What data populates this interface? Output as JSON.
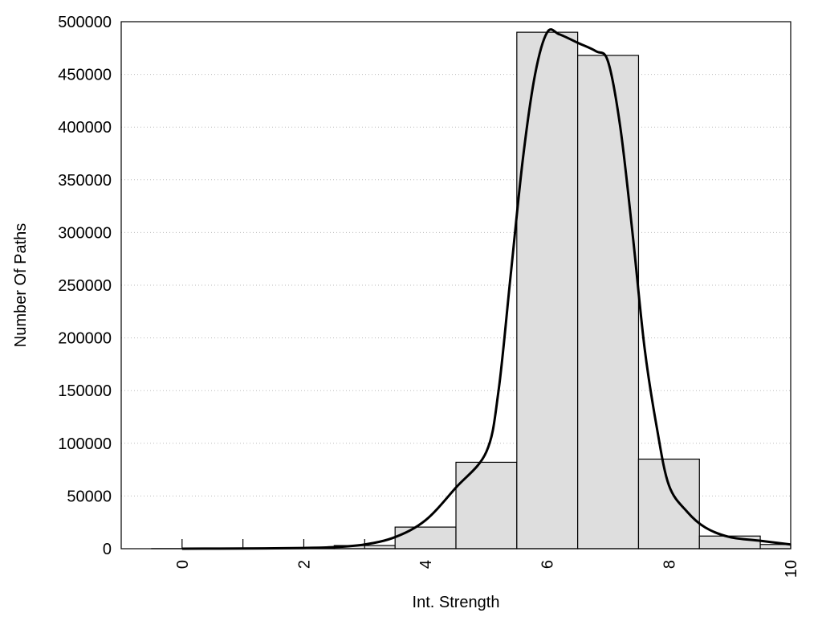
{
  "chart_data": {
    "type": "bar",
    "title": "",
    "xlabel": "Int. Strength",
    "ylabel": "Number Of Paths",
    "xlim": [
      -1,
      10
    ],
    "ylim": [
      0,
      500000
    ],
    "grid": true,
    "x_ticks": [
      0,
      2,
      4,
      6,
      8,
      10
    ],
    "x_minor_ticks": [
      0,
      1,
      2,
      3
    ],
    "y_ticks": [
      0,
      50000,
      100000,
      150000,
      200000,
      250000,
      300000,
      350000,
      400000,
      450000,
      500000
    ],
    "bar_color": "#dedede",
    "bars": {
      "x": [
        0,
        1,
        2,
        3,
        4,
        5,
        6,
        7,
        8,
        9,
        10
      ],
      "values": [
        100,
        300,
        800,
        3000,
        20500,
        82000,
        490000,
        468000,
        85000,
        12000,
        4000
      ]
    },
    "fit_curve": {
      "x": [
        0,
        1,
        2,
        2.5,
        3,
        3.5,
        4,
        4.5,
        5,
        5.2,
        5.4,
        5.6,
        5.8,
        6,
        6.2,
        6.5,
        6.8,
        7,
        7.2,
        7.4,
        7.6,
        7.8,
        8,
        8.3,
        8.6,
        9,
        9.5,
        10
      ],
      "y": [
        0,
        200,
        700,
        1500,
        4000,
        11000,
        27000,
        58000,
        92000,
        150000,
        260000,
        370000,
        450000,
        490000,
        488000,
        480000,
        472000,
        462000,
        400000,
        300000,
        190000,
        115000,
        60000,
        35000,
        20000,
        11000,
        7500,
        4000
      ]
    }
  }
}
